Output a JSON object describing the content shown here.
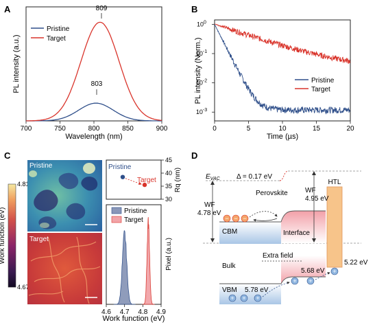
{
  "panels": {
    "A": "A",
    "B": "B",
    "C": "C",
    "D": "D"
  },
  "colors": {
    "pristine": "#2f4f8a",
    "target": "#d9342b"
  },
  "chart_data": [
    {
      "panel": "A",
      "type": "line",
      "xlabel": "Wavelength (nm)",
      "ylabel": "PL intensity (a.u.)",
      "xlim": [
        700,
        900
      ],
      "x_ticks": [
        "700",
        "750",
        "800",
        "850",
        "900"
      ],
      "legend_position": "top-left",
      "series": [
        {
          "name": "Pristine",
          "peak_x": 803,
          "peak_y": 0.18,
          "fwhm": 60
        },
        {
          "name": "Target",
          "peak_x": 809,
          "peak_y": 1.0,
          "fwhm": 66
        }
      ],
      "annotations": [
        "809",
        "803"
      ]
    },
    {
      "panel": "B",
      "type": "line",
      "xlabel": "Time (µs)",
      "ylabel": "PL intensity (Norm.)",
      "xlim": [
        0,
        20
      ],
      "ylim_log10": [
        -3.3,
        0.15
      ],
      "y_scale": "log",
      "x_ticks": [
        "0",
        "5",
        "10",
        "15",
        "20"
      ],
      "legend_position": "bottom-right",
      "series": [
        {
          "name": "Pristine",
          "tau_us": 0.95,
          "floor": 0.0012
        },
        {
          "name": "Target",
          "tau_us": 5.5,
          "floor": 0.03
        }
      ]
    },
    {
      "panel": "C-scatter",
      "type": "scatter",
      "ylabel": "Rq (nm)",
      "ylim": [
        30,
        45
      ],
      "y_ticks": [
        "45",
        "40",
        "35",
        "30"
      ],
      "points": [
        {
          "name": "Pristine",
          "value": 38.5
        },
        {
          "name": "Target",
          "value": 35.5
        }
      ]
    },
    {
      "panel": "C-hist",
      "type": "area",
      "xlabel": "Work function (eV)",
      "ylabel": "Pixel (a.u.)",
      "xlim": [
        4.6,
        4.9
      ],
      "x_ticks": [
        "4.6",
        "4.7",
        "4.8",
        "4.9"
      ],
      "legend_position": "top-right",
      "series": [
        {
          "name": "Pristine",
          "center": 4.7,
          "sigma": 0.012
        },
        {
          "name": "Target",
          "center": 4.83,
          "sigma": 0.007
        }
      ]
    }
  ],
  "panelC": {
    "pristine_label": "Pristine",
    "target_label": "Target",
    "colorbar_label": "Work function (eV)",
    "colorbar_max": "4.815",
    "colorbar_min": "4.675"
  },
  "panelD": {
    "evac": "E",
    "evac_sub": "VAC",
    "delta": "Δ = 0.17 eV",
    "perovskite": "Perovskite",
    "wf_left_label": "WF",
    "wf_left_value": "4.78 eV",
    "wf_right_label": "WF",
    "wf_right_value": "4.95 eV",
    "htl": "HTL",
    "cbm": "CBM",
    "interface": "Interface",
    "extra_field": "Extra field",
    "bulk": "Bulk",
    "vbm": "VBM",
    "vbm_value": "5.78 eV",
    "interface_value": "5.68 eV",
    "htl_value": "5.22 eV",
    "minus": "−",
    "plus": "+"
  }
}
